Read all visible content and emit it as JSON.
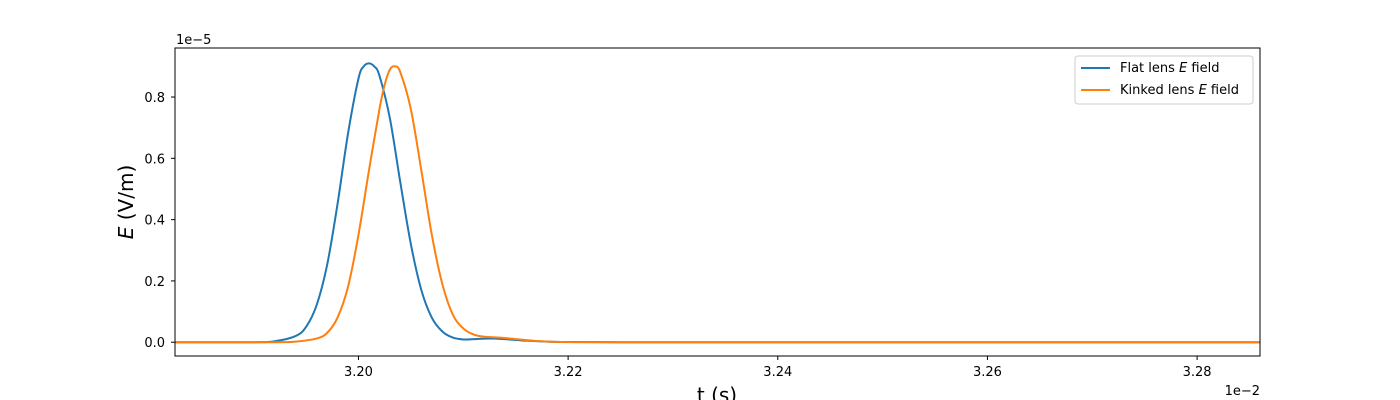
{
  "chart_data": {
    "type": "line",
    "xlabel": "t (s)",
    "ylabel_var": "E",
    "ylabel_unit": " (V/m)",
    "x_offset_label": "1e−2",
    "y_offset_label": "1e−5",
    "xlim": [
      3.1825,
      3.286
    ],
    "ylim": [
      -0.045,
      0.96
    ],
    "x_ticks": [
      3.2,
      3.22,
      3.24,
      3.26,
      3.28
    ],
    "x_tick_labels": [
      "3.20",
      "3.22",
      "3.24",
      "3.26",
      "3.28"
    ],
    "y_ticks": [
      0.0,
      0.2,
      0.4,
      0.6,
      0.8
    ],
    "y_tick_labels": [
      "0.0",
      "0.2",
      "0.4",
      "0.6",
      "0.8"
    ],
    "grid": false,
    "legend_position": "top-right",
    "series": [
      {
        "name_prefix": "Flat lens ",
        "name_var": "E",
        "name_suffix": " field",
        "color": "#1f77b4",
        "x": [
          3.1825,
          3.19,
          3.192,
          3.194,
          3.195,
          3.196,
          3.197,
          3.198,
          3.199,
          3.2,
          3.2005,
          3.201,
          3.2015,
          3.202,
          3.203,
          3.204,
          3.205,
          3.206,
          3.207,
          3.208,
          3.209,
          3.21,
          3.211,
          3.2125,
          3.214,
          3.216,
          3.218,
          3.22,
          3.225,
          3.23,
          3.286
        ],
        "y": [
          0.0,
          0.0,
          0.003,
          0.02,
          0.05,
          0.12,
          0.25,
          0.45,
          0.68,
          0.86,
          0.9,
          0.91,
          0.9,
          0.87,
          0.73,
          0.52,
          0.32,
          0.17,
          0.08,
          0.035,
          0.015,
          0.009,
          0.01,
          0.012,
          0.01,
          0.005,
          0.002,
          0.0005,
          0.0,
          0.0,
          0.0
        ]
      },
      {
        "name_prefix": "Kinked lens ",
        "name_var": "E",
        "name_suffix": " field",
        "color": "#ff7f0e",
        "x": [
          3.1825,
          3.192,
          3.194,
          3.196,
          3.197,
          3.198,
          3.199,
          3.2,
          3.201,
          3.202,
          3.2025,
          3.203,
          3.2035,
          3.204,
          3.205,
          3.206,
          3.207,
          3.208,
          3.209,
          3.21,
          3.211,
          3.212,
          3.2135,
          3.215,
          3.217,
          3.219,
          3.221,
          3.225,
          3.23,
          3.286
        ],
        "y": [
          0.0,
          0.0,
          0.002,
          0.012,
          0.03,
          0.08,
          0.18,
          0.35,
          0.56,
          0.76,
          0.84,
          0.89,
          0.9,
          0.88,
          0.76,
          0.56,
          0.35,
          0.19,
          0.09,
          0.045,
          0.025,
          0.018,
          0.015,
          0.01,
          0.004,
          0.001,
          0.0003,
          0.0,
          0.0,
          0.0
        ]
      }
    ]
  }
}
